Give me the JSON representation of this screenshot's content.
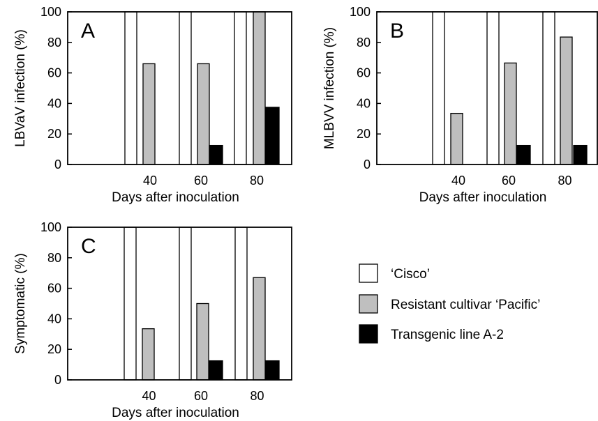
{
  "legend": {
    "placement": "right",
    "items": [
      {
        "label": "‘Cisco’",
        "color": "#ffffff"
      },
      {
        "label": "Resistant cultivar ‘Pacific’",
        "color": "#bfbfbf"
      },
      {
        "label": "Transgenic line A-2",
        "color": "#000000"
      }
    ]
  },
  "chart_data": [
    {
      "type": "bar",
      "panel_label": "A",
      "categories": [
        "40",
        "60",
        "80"
      ],
      "xlabel": "Days after inoculation",
      "ylabel": "LBVaV infection (%)",
      "ylim": [
        0,
        100
      ],
      "yticks": [
        "0",
        "20",
        "40",
        "60",
        "80",
        "100"
      ],
      "grid": false,
      "series": [
        {
          "name": "‘Cisco’",
          "values": [
            100,
            100,
            100
          ]
        },
        {
          "name": "Resistant cultivar ‘Pacific’",
          "values": [
            66,
            66,
            100
          ]
        },
        {
          "name": "Transgenic line A-2",
          "values": [
            0,
            12.5,
            37.5
          ]
        }
      ]
    },
    {
      "type": "bar",
      "panel_label": "B",
      "categories": [
        "40",
        "60",
        "80"
      ],
      "xlabel": "Days after inoculation",
      "ylabel": "MLBVV infection (%)",
      "ylim": [
        0,
        100
      ],
      "yticks": [
        "0",
        "20",
        "40",
        "60",
        "80",
        "100"
      ],
      "grid": false,
      "series": [
        {
          "name": "‘Cisco’",
          "values": [
            100,
            100,
            100
          ]
        },
        {
          "name": "Resistant cultivar ‘Pacific’",
          "values": [
            33.5,
            66.5,
            83.5
          ]
        },
        {
          "name": "Transgenic line A-2",
          "values": [
            0,
            12.5,
            12.5
          ]
        }
      ]
    },
    {
      "type": "bar",
      "panel_label": "C",
      "categories": [
        "40",
        "60",
        "80"
      ],
      "xlabel": "Days after inoculation",
      "ylabel": "Symptomatic (%)",
      "ylim": [
        0,
        100
      ],
      "yticks": [
        "0",
        "20",
        "40",
        "60",
        "80",
        "100"
      ],
      "grid": false,
      "series": [
        {
          "name": "‘Cisco’",
          "values": [
            100,
            100,
            100
          ]
        },
        {
          "name": "Resistant cultivar ‘Pacific’",
          "values": [
            33.5,
            50,
            67
          ]
        },
        {
          "name": "Transgenic line A-2",
          "values": [
            0,
            12.5,
            12.5
          ]
        }
      ]
    }
  ]
}
